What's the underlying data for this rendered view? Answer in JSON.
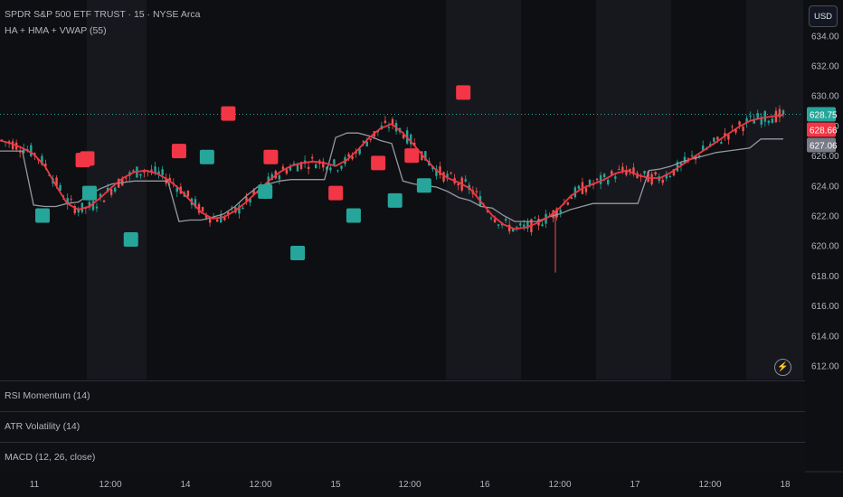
{
  "header": {
    "symbol_line": "SPDR S&P 500 ETF TRUST · 15 · NYSE Arca",
    "indicator_line": "HA + HMA + VWAP (55)"
  },
  "currency_button": "USD",
  "panes": [
    {
      "label": "RSI Momentum (14)"
    },
    {
      "label": "ATR Volatility (14)"
    },
    {
      "label": "MACD (12, 26, close)"
    }
  ],
  "colors": {
    "background": "#0e0f12",
    "shade_band": "#17181d",
    "bull": "#26a69a",
    "bear": "#ef5350",
    "hma": "#f23645",
    "vwap": "#9598a1",
    "price_line": "#26a69a"
  },
  "chart_data": {
    "type": "candlestick",
    "title": "SPDR S&P 500 ETF TRUST · 15 · NYSE Arca",
    "y_ticks": [
      "634.00",
      "632.00",
      "630.00",
      "628.00",
      "626.00",
      "624.00",
      "622.00",
      "620.00",
      "618.00",
      "616.00",
      "614.00",
      "612.00"
    ],
    "ylim": [
      611.5,
      635.0
    ],
    "x_ticks": [
      "11",
      "12:00",
      "14",
      "12:00",
      "15",
      "12:00",
      "16",
      "12:00",
      "17",
      "12:00",
      "18"
    ],
    "price_labels": [
      {
        "value": 628.75,
        "text": "628.75",
        "color": "#26a69a"
      },
      {
        "value": 628.66,
        "text": "628.66",
        "color": "#f23645"
      },
      {
        "value": 627.06,
        "text": "627.06",
        "color": "#787b86"
      }
    ],
    "hma_series": [
      627.0,
      626.8,
      626.5,
      626.1,
      625.3,
      624.0,
      622.8,
      622.4,
      622.6,
      623.2,
      623.9,
      624.5,
      624.9,
      625.0,
      624.8,
      624.4,
      623.8,
      623.0,
      622.2,
      621.8,
      621.9,
      622.3,
      622.9,
      623.6,
      624.3,
      624.9,
      625.3,
      625.5,
      625.6,
      625.5,
      625.3,
      625.7,
      626.4,
      627.2,
      627.8,
      628.1,
      627.5,
      626.7,
      625.8,
      625.0,
      624.5,
      624.2,
      623.8,
      622.9,
      622.0,
      621.4,
      621.1,
      621.2,
      621.5,
      621.9,
      622.5,
      623.3,
      623.8,
      624.1,
      624.4,
      624.8,
      625.0,
      624.7,
      624.5,
      624.5,
      624.9,
      625.4,
      625.9,
      626.4,
      626.9,
      627.4,
      627.9,
      628.3,
      628.5,
      628.6,
      628.7
    ],
    "vwap_series": [
      626.3,
      626.3,
      626.3,
      622.7,
      622.6,
      622.6,
      622.8,
      622.9,
      623.4,
      623.8,
      624.1,
      624.2,
      624.3,
      624.3,
      624.3,
      624.3,
      621.6,
      621.7,
      621.7,
      621.9,
      622.1,
      622.6,
      623.3,
      623.9,
      624.1,
      624.3,
      624.4,
      624.4,
      624.4,
      624.4,
      627.2,
      627.5,
      627.5,
      627.3,
      627.0,
      626.8,
      624.3,
      624.1,
      624.0,
      623.9,
      623.6,
      623.2,
      623.0,
      622.6,
      622.5,
      622.0,
      621.6,
      621.6,
      621.6,
      621.9,
      622.1,
      622.4,
      622.6,
      622.8,
      622.8,
      622.8,
      622.8,
      622.8,
      625.0,
      625.1,
      625.3,
      625.6,
      625.8,
      626.0,
      626.2,
      626.3,
      626.4,
      626.5,
      627.1,
      627.1,
      627.1
    ],
    "signals": [
      {
        "kind": "sell",
        "index": 7.4,
        "value": 625.7
      },
      {
        "kind": "sell",
        "index": 7.8,
        "value": 625.8
      },
      {
        "kind": "buy",
        "index": 3.8,
        "value": 622.0
      },
      {
        "kind": "buy",
        "index": 8.0,
        "value": 623.5
      },
      {
        "kind": "buy",
        "index": 11.7,
        "value": 620.4
      },
      {
        "kind": "sell",
        "index": 16.0,
        "value": 626.3
      },
      {
        "kind": "buy",
        "index": 18.5,
        "value": 625.9
      },
      {
        "kind": "sell",
        "index": 20.4,
        "value": 628.8
      },
      {
        "kind": "buy",
        "index": 23.7,
        "value": 623.6
      },
      {
        "kind": "sell",
        "index": 24.2,
        "value": 625.9
      },
      {
        "kind": "buy",
        "index": 26.6,
        "value": 619.5
      },
      {
        "kind": "sell",
        "index": 30.0,
        "value": 623.5
      },
      {
        "kind": "buy",
        "index": 31.6,
        "value": 622.0
      },
      {
        "kind": "sell",
        "index": 33.8,
        "value": 625.5
      },
      {
        "kind": "buy",
        "index": 35.3,
        "value": 623.0
      },
      {
        "kind": "sell",
        "index": 36.8,
        "value": 626.0
      },
      {
        "kind": "buy",
        "index": 37.9,
        "value": 624.0
      },
      {
        "kind": "sell",
        "index": 41.4,
        "value": 630.2
      }
    ],
    "grid": false,
    "legend": "top-left"
  }
}
